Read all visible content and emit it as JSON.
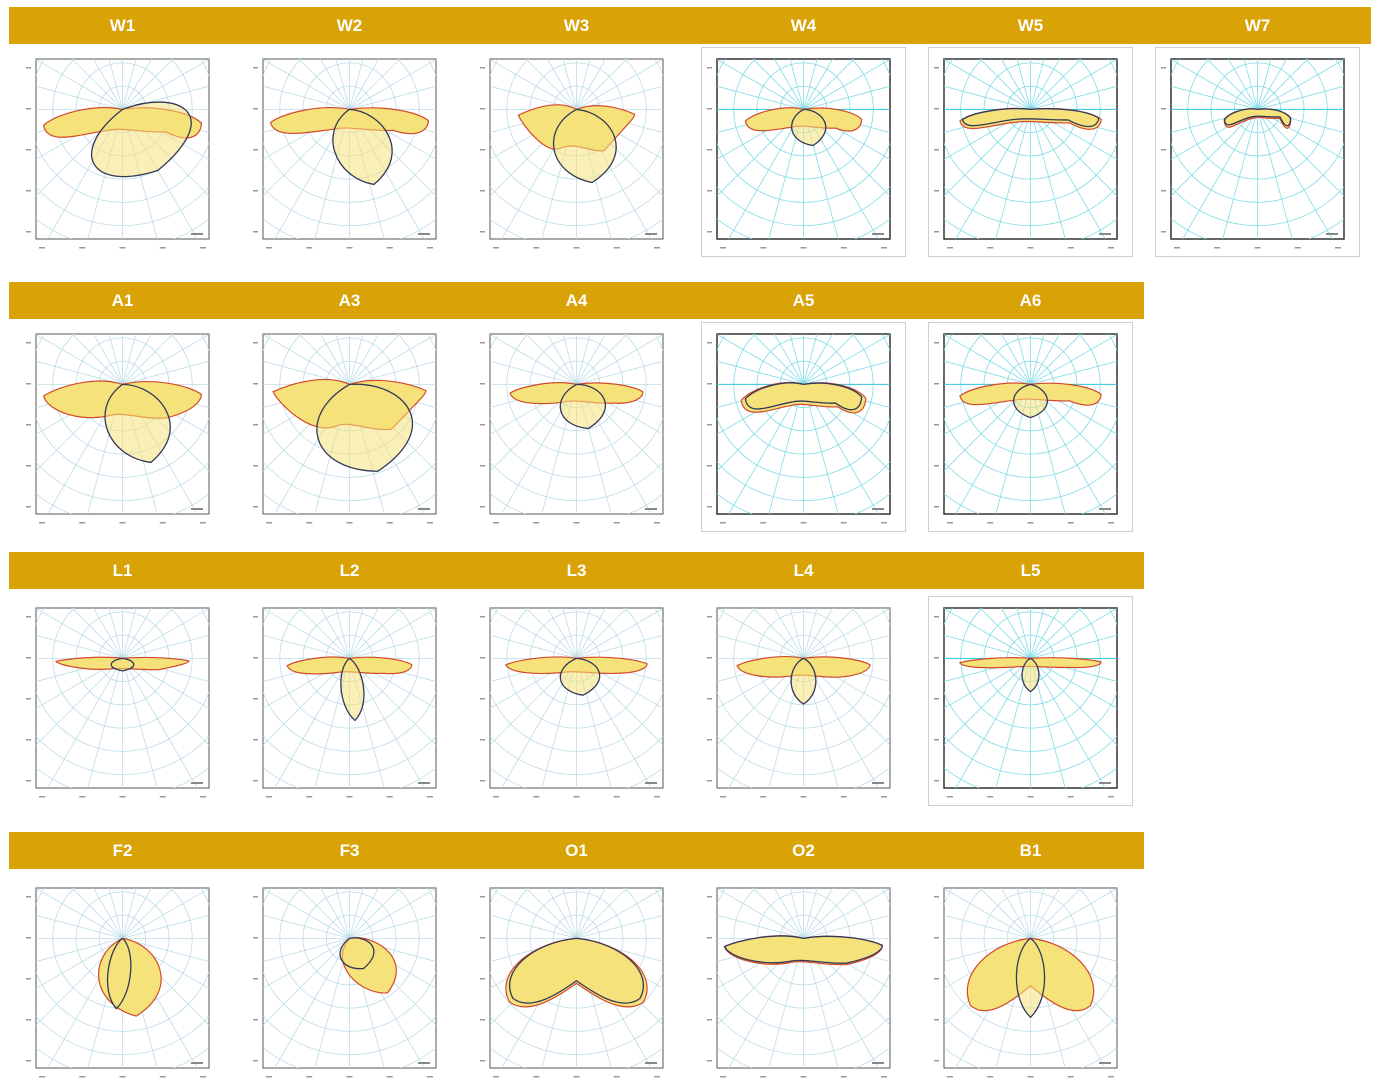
{
  "rows": [
    {
      "labels": [
        "W1",
        "W2",
        "W3",
        "W4",
        "W5",
        "W7"
      ]
    },
    {
      "labels": [
        "A1",
        "A3",
        "A4",
        "A5",
        "A6"
      ]
    },
    {
      "labels": [
        "L1",
        "L2",
        "L3",
        "L4",
        "L5"
      ]
    },
    {
      "labels": [
        "F2",
        "F3",
        "O1",
        "O2",
        "B1"
      ]
    }
  ],
  "colors": {
    "band": "#d9a206",
    "band_text": "#ffffff",
    "fill": "#f6e27a",
    "outline_red": "#d24a2c",
    "outline_dark": "#34385a",
    "grid_light": "#bcdde6",
    "grid_cyan": "#7fdbe6"
  }
}
